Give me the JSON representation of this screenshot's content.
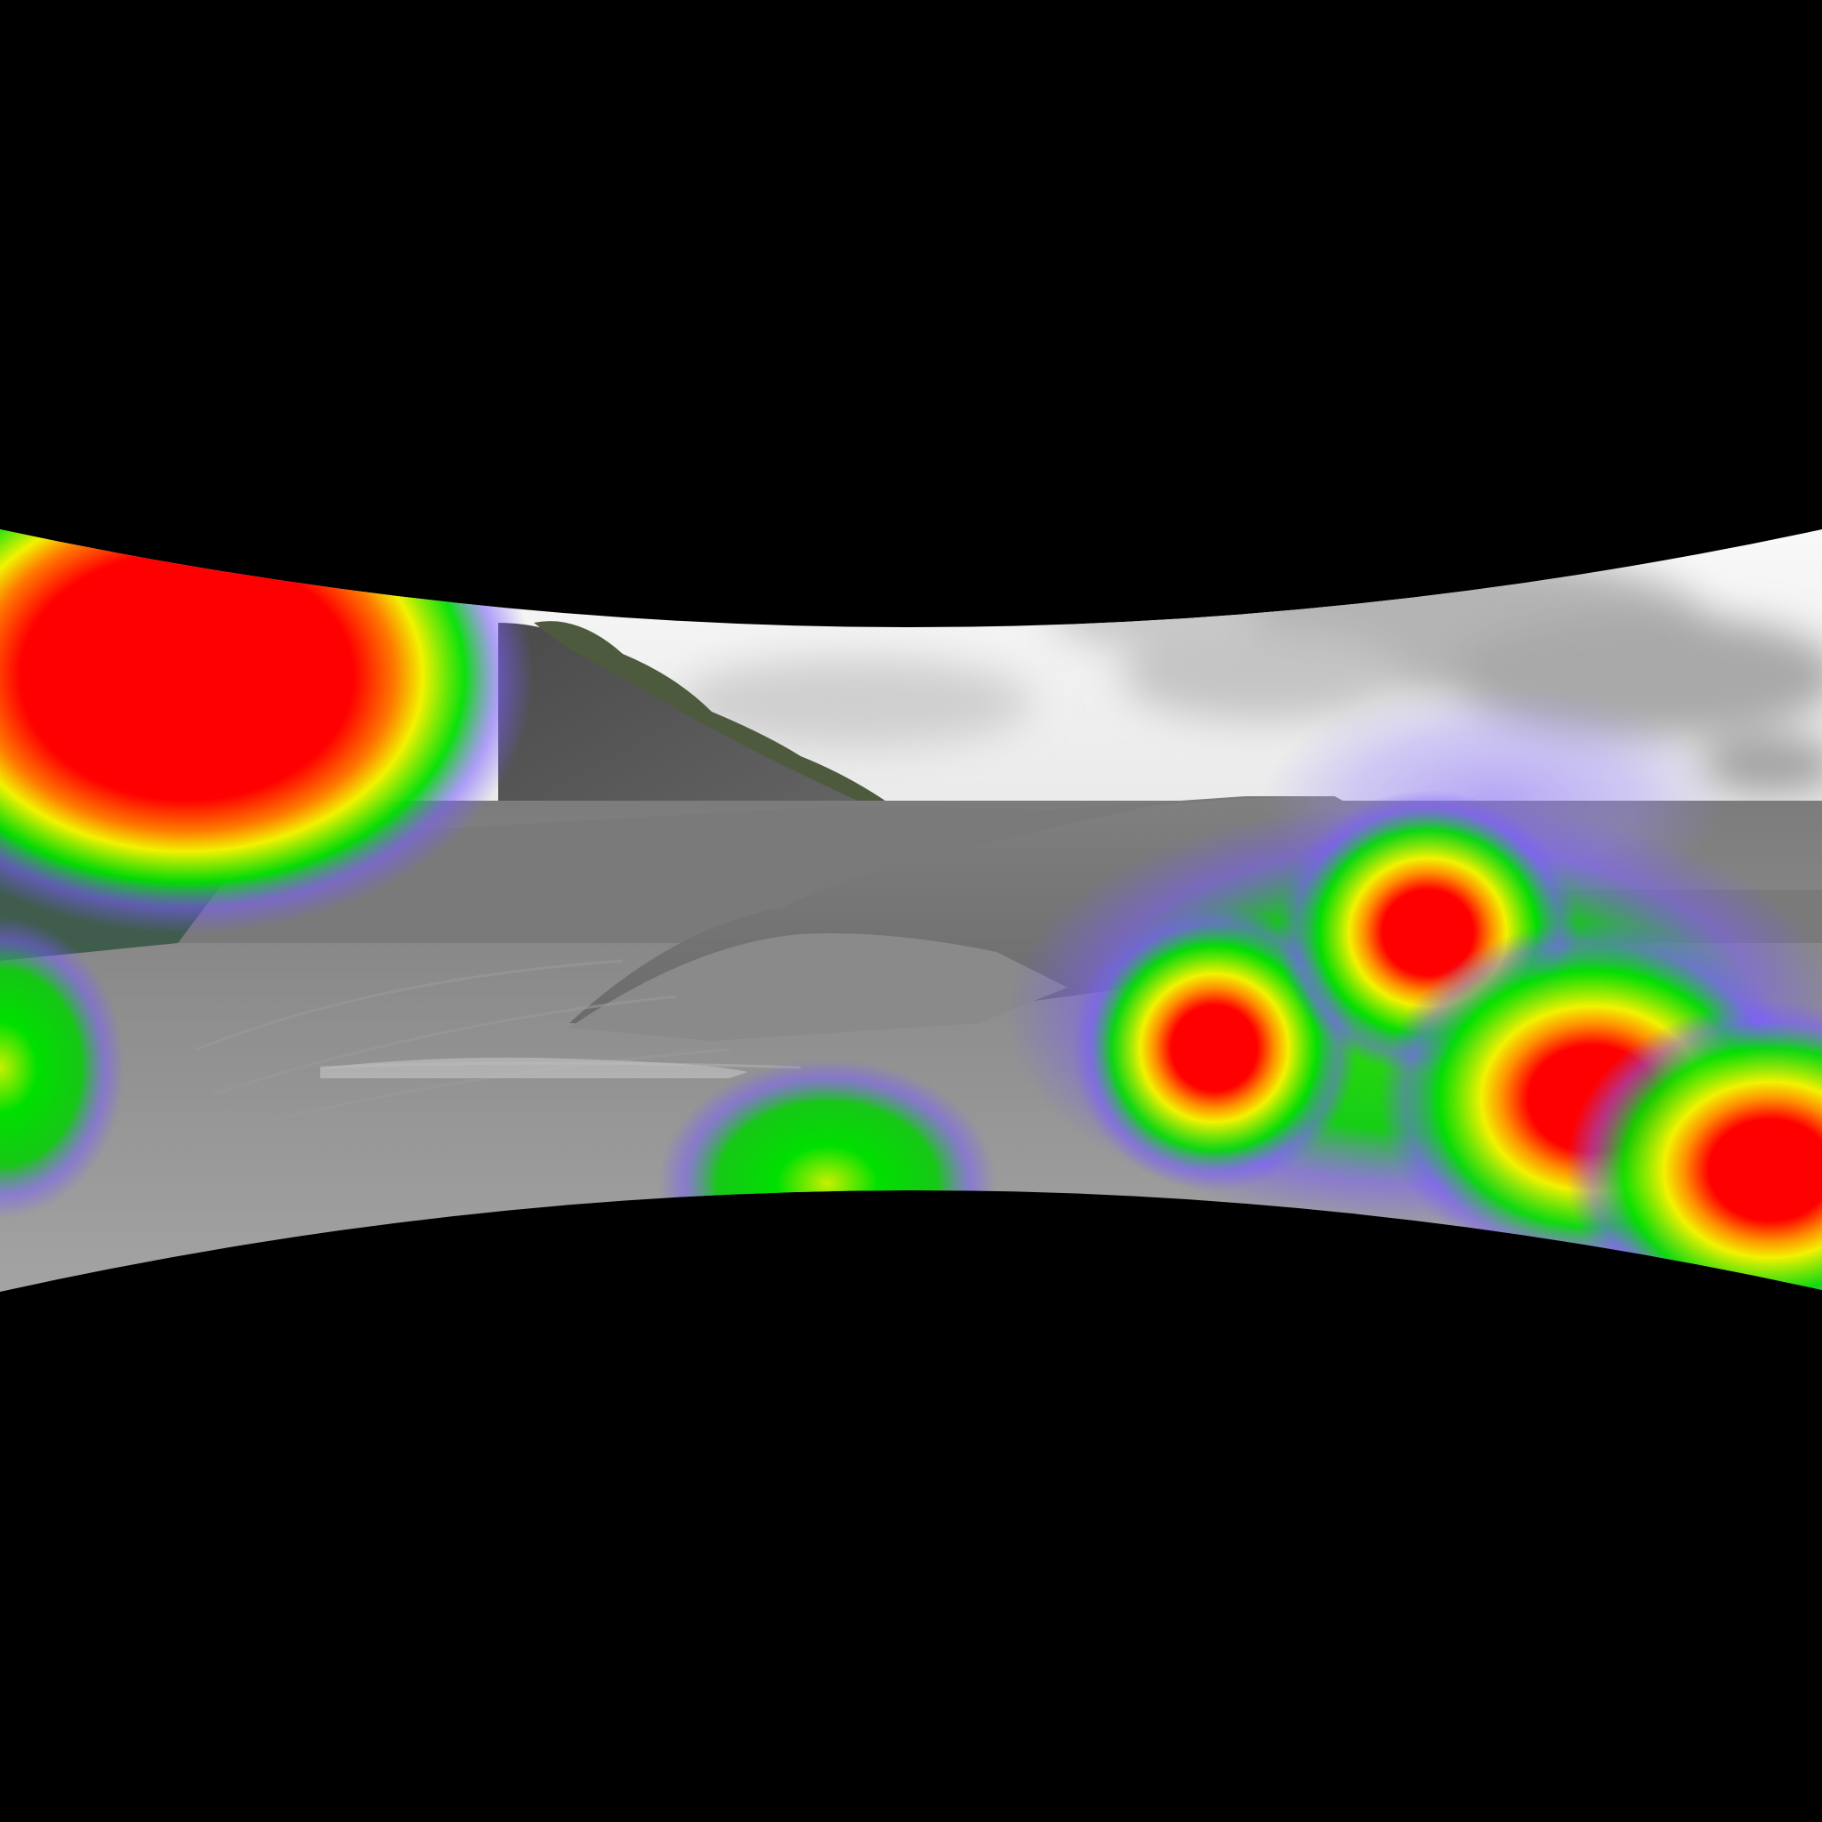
{
  "scene": {
    "background_color": "#000000",
    "description_type": "panorama-saliency-heatmap",
    "projection": "curved-equirectangular-strip",
    "photo": {
      "subject": "gravel-quarry",
      "palette": {
        "sky_top": "#f6f6f6",
        "sky_mid": "#e4e4e4",
        "cloud": "#b9b9b9",
        "cloud_dark": "#9a9a9a",
        "hill": "#555555",
        "hill_dark": "#3f3f3f",
        "trees": "#4a5a3a",
        "gravel_far": "#7c7c7c",
        "gravel_mid": "#8e8e8e",
        "gravel_near": "#a2a2a2",
        "pile_light": "#9a9a9a",
        "pile_dark": "#6e6e6e",
        "left_slope": "#3d5a4a"
      }
    },
    "heatmap": {
      "colormap": [
        "#8a5cff",
        "#00e600",
        "#f2f200",
        "#ff0000"
      ],
      "hotspots": [
        {
          "id": "top-left-blob",
          "intensity": 1.0
        },
        {
          "id": "left-middle-blob",
          "intensity": 0.55
        },
        {
          "id": "bottom-center-blob",
          "intensity": 0.5
        },
        {
          "id": "right-center-spot",
          "intensity": 1.0
        },
        {
          "id": "right-upper-spot",
          "intensity": 1.0
        },
        {
          "id": "right-lower-spot",
          "intensity": 1.0
        },
        {
          "id": "far-right-spot",
          "intensity": 1.0
        },
        {
          "id": "sky-right-halo",
          "intensity": 0.35
        }
      ]
    }
  }
}
